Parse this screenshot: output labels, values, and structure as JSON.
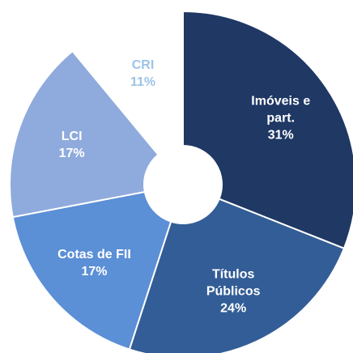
{
  "chart_data": {
    "type": "donut",
    "categories": [
      "Imóveis e part.",
      "Títulos Públicos",
      "Cotas de FII",
      "LCI",
      "CRI"
    ],
    "values": [
      31,
      24,
      17,
      17,
      11
    ],
    "value_labels": [
      "31%",
      "24%",
      "17%",
      "17%",
      "11%"
    ],
    "colors": [
      "#1f3864",
      "#335d96",
      "#5b8fd6",
      "#8faadc",
      "#ffffff"
    ],
    "label_colors": [
      "#ffffff",
      "#ffffff",
      "#ffffff",
      "#ffffff",
      "#9dc3e6"
    ]
  }
}
